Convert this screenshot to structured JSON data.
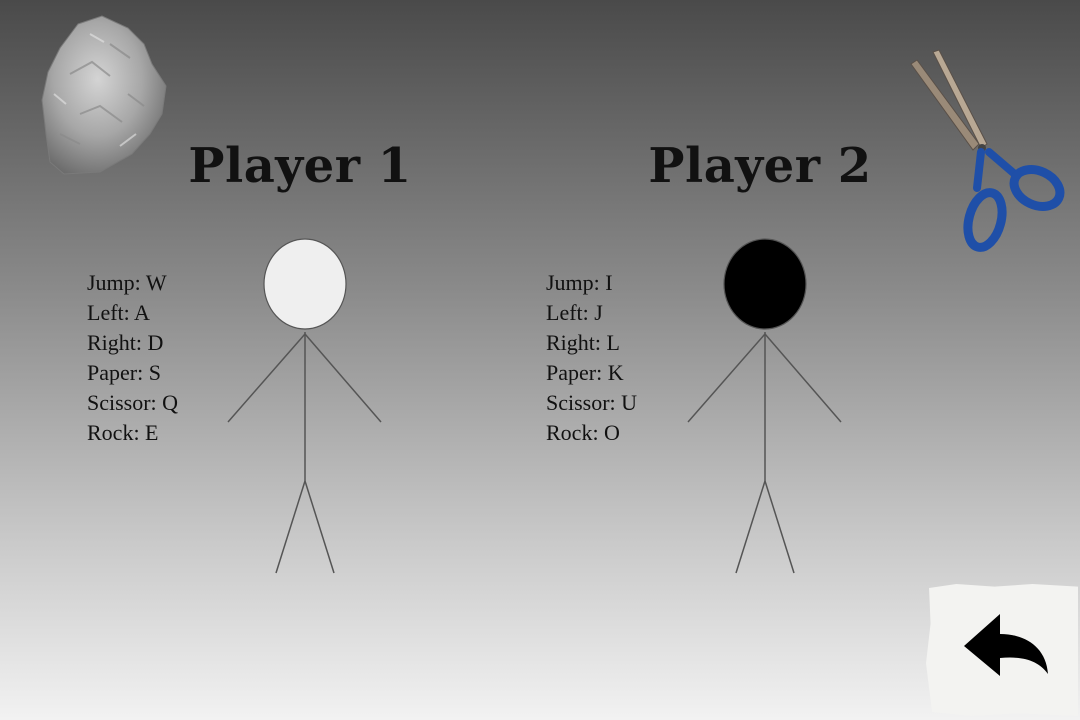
{
  "players": [
    {
      "title": "Player 1",
      "head_color": "#efefef",
      "controls": {
        "jump": "Jump: W",
        "left": "Left: A",
        "right": "Right: D",
        "paper": "Paper: S",
        "scissor": "Scissor: Q",
        "rock": "Rock: E"
      }
    },
    {
      "title": "Player 2",
      "head_color": "#000000",
      "controls": {
        "jump": "Jump: I",
        "left": "Left: J",
        "right": "Right: L",
        "paper": "Paper: K",
        "scissor": "Scissor: U",
        "rock": "Rock: O"
      }
    }
  ],
  "icons": {
    "rock": "rock-icon",
    "scissors": "scissors-icon",
    "back": "back-arrow-icon"
  },
  "colors": {
    "scissor_handle": "#1f4fa8",
    "rock": "#9c9c9c"
  }
}
